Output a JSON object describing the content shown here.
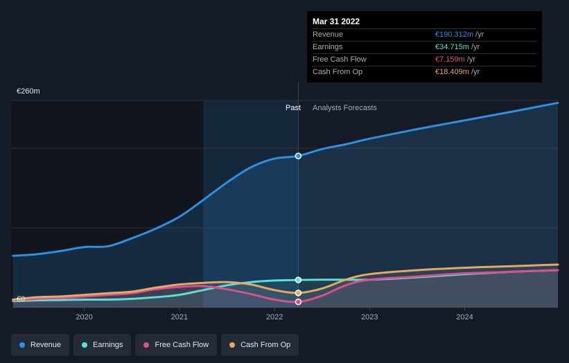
{
  "tooltip": {
    "date": "Mar 31 2022",
    "rows": [
      {
        "label": "Revenue",
        "value": "€190.312m",
        "unit": "/yr",
        "color": "#2f8fe0"
      },
      {
        "label": "Earnings",
        "value": "€34.715m",
        "unit": "/yr",
        "color": "#5ce0d2"
      },
      {
        "label": "Free Cash Flow",
        "value": "€7.159m",
        "unit": "/yr",
        "color": "#d9508f"
      },
      {
        "label": "Cash From Op",
        "value": "€18.409m",
        "unit": "/yr",
        "color": "#e8a860"
      }
    ]
  },
  "labels": {
    "past": "Past",
    "forecast": "Analysts Forecasts"
  },
  "chart_data": {
    "type": "line",
    "y_top_label": "€260m",
    "y_bottom_label": "€0",
    "ylim": [
      0,
      260
    ],
    "xlim": [
      2019.23,
      2024.98
    ],
    "past_end": 2022.25,
    "highlight_start": 2021.25,
    "x_ticks": [
      2020,
      2021,
      2022,
      2023,
      2024
    ],
    "x_tick_labels": [
      "2020",
      "2021",
      "2022",
      "2023",
      "2024"
    ],
    "series": [
      {
        "name": "Revenue",
        "color": "#2f8fe0",
        "points": [
          [
            2019.25,
            65
          ],
          [
            2019.5,
            67
          ],
          [
            2019.75,
            71
          ],
          [
            2020.0,
            76
          ],
          [
            2020.25,
            77
          ],
          [
            2020.5,
            87
          ],
          [
            2020.75,
            99
          ],
          [
            2021.0,
            114
          ],
          [
            2021.25,
            135
          ],
          [
            2021.5,
            157
          ],
          [
            2021.75,
            176
          ],
          [
            2022.0,
            187
          ],
          [
            2022.25,
            190.3
          ],
          [
            2022.5,
            199
          ],
          [
            2022.75,
            205
          ],
          [
            2023.0,
            212
          ],
          [
            2023.5,
            224
          ],
          [
            2024.0,
            235
          ],
          [
            2024.5,
            246
          ],
          [
            2024.98,
            257
          ]
        ]
      },
      {
        "name": "Earnings",
        "color": "#5ce0d2",
        "points": [
          [
            2019.25,
            8
          ],
          [
            2019.5,
            9
          ],
          [
            2019.75,
            9.5
          ],
          [
            2020.0,
            10
          ],
          [
            2020.25,
            10
          ],
          [
            2020.5,
            11
          ],
          [
            2020.75,
            13
          ],
          [
            2021.0,
            16
          ],
          [
            2021.25,
            22
          ],
          [
            2021.5,
            28
          ],
          [
            2021.75,
            32
          ],
          [
            2022.0,
            34
          ],
          [
            2022.25,
            34.7
          ],
          [
            2022.5,
            35
          ],
          [
            2022.75,
            35
          ],
          [
            2023.0,
            35
          ],
          [
            2023.5,
            38
          ],
          [
            2024.0,
            42
          ],
          [
            2024.5,
            45
          ],
          [
            2024.98,
            47
          ]
        ]
      },
      {
        "name": "Free Cash Flow",
        "color": "#d9508f",
        "points": [
          [
            2019.25,
            9
          ],
          [
            2019.5,
            11
          ],
          [
            2019.75,
            12
          ],
          [
            2020.0,
            14
          ],
          [
            2020.25,
            16
          ],
          [
            2020.5,
            18
          ],
          [
            2020.75,
            23
          ],
          [
            2021.0,
            26
          ],
          [
            2021.25,
            27
          ],
          [
            2021.5,
            23
          ],
          [
            2021.75,
            17
          ],
          [
            2022.0,
            10
          ],
          [
            2022.25,
            7.2
          ],
          [
            2022.5,
            15
          ],
          [
            2022.75,
            28
          ],
          [
            2023.0,
            35
          ],
          [
            2023.5,
            39
          ],
          [
            2024.0,
            43
          ],
          [
            2024.5,
            45
          ],
          [
            2024.98,
            47
          ]
        ]
      },
      {
        "name": "Cash From Op",
        "color": "#e8a860",
        "points": [
          [
            2019.25,
            10
          ],
          [
            2019.5,
            13
          ],
          [
            2019.75,
            14
          ],
          [
            2020.0,
            16
          ],
          [
            2020.25,
            18
          ],
          [
            2020.5,
            20
          ],
          [
            2020.75,
            25
          ],
          [
            2021.0,
            29
          ],
          [
            2021.25,
            31
          ],
          [
            2021.5,
            32
          ],
          [
            2021.75,
            29
          ],
          [
            2022.0,
            22
          ],
          [
            2022.25,
            18.4
          ],
          [
            2022.5,
            24
          ],
          [
            2022.75,
            35
          ],
          [
            2023.0,
            42
          ],
          [
            2023.5,
            47
          ],
          [
            2024.0,
            50
          ],
          [
            2024.5,
            52
          ],
          [
            2024.98,
            54
          ]
        ]
      }
    ],
    "markers_at": 2022.25,
    "marker_values": [
      190.3,
      34.7,
      7.2,
      18.4
    ]
  },
  "legend": [
    {
      "label": "Revenue",
      "color": "#2f8fe0"
    },
    {
      "label": "Earnings",
      "color": "#5ce0d2"
    },
    {
      "label": "Free Cash Flow",
      "color": "#d9508f"
    },
    {
      "label": "Cash From Op",
      "color": "#e8a860"
    }
  ]
}
